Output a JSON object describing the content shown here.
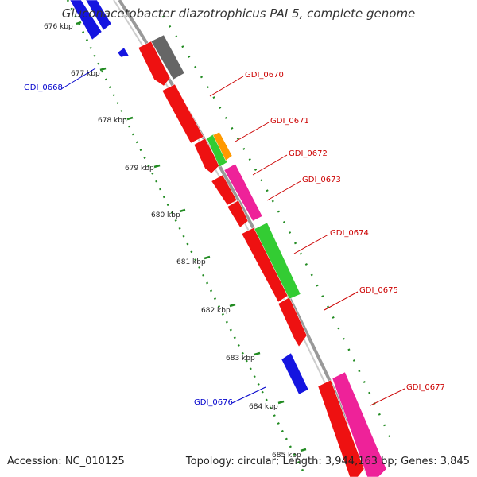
{
  "title": "Gluconacetobacter diazotrophicus PAI 5, complete genome",
  "footer": {
    "accession": "Accession: NC_010125",
    "summary": "Topology: circular; Length: 3,944,163 bp; Genes: 3,845"
  },
  "colors": {
    "backbone": "#8a8a8a",
    "scale_dots": "#228b22",
    "blue": "#1515e0",
    "red": "#ee1111",
    "gray": "#666666",
    "green": "#33cc33",
    "orange": "#ff9900",
    "magenta": "#ee2299",
    "label_red": "#cc0000",
    "label_blue": "#0000cc"
  },
  "scale_ticks": [
    {
      "label": "676 kbp"
    },
    {
      "label": "677 kbp"
    },
    {
      "label": "678 kbp"
    },
    {
      "label": "679 kbp"
    },
    {
      "label": "680 kbp"
    },
    {
      "label": "681 kbp"
    },
    {
      "label": "682 kbp"
    },
    {
      "label": "683 kbp"
    },
    {
      "label": "684 kbp"
    },
    {
      "label": "685 kbp"
    }
  ],
  "gene_labels": [
    {
      "text": "GDI_0668",
      "color": "blue"
    },
    {
      "text": "GDI_0670",
      "color": "red"
    },
    {
      "text": "GDI_0671",
      "color": "red"
    },
    {
      "text": "GDI_0672",
      "color": "red"
    },
    {
      "text": "GDI_0673",
      "color": "red"
    },
    {
      "text": "GDI_0674",
      "color": "red"
    },
    {
      "text": "GDI_0675",
      "color": "red"
    },
    {
      "text": "GDI_0676",
      "color": "blue"
    },
    {
      "text": "GDI_0677",
      "color": "red"
    }
  ]
}
